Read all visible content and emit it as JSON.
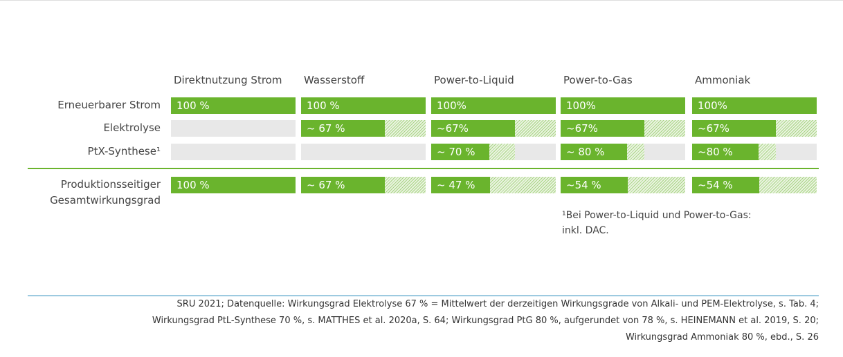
{
  "chart_data": {
    "type": "bar",
    "categories": [
      "Direktnutzung Strom",
      "Wasserstoff",
      "Power-to-Liquid",
      "Power-to-Gas",
      "Ammoniak"
    ],
    "series": [
      {
        "name": "Erneuerbarer Strom",
        "values": [
          100,
          100,
          100,
          100,
          100
        ],
        "value_labels": [
          "100 %",
          "100 %",
          "100%",
          "100%",
          "100%"
        ]
      },
      {
        "name": "Elektrolyse",
        "values": [
          null,
          67,
          67,
          67,
          67
        ],
        "value_labels": [
          null,
          "~ 67 %",
          "~67%",
          "~67%",
          "~67%"
        ]
      },
      {
        "name": "PtX-Synthese¹",
        "values": [
          null,
          null,
          70,
          80,
          80
        ],
        "value_labels": [
          null,
          null,
          "~ 70 %",
          "~ 80 %",
          "~80 %"
        ]
      },
      {
        "name": "Produktionsseitiger Gesamtwirkungsgrad",
        "values": [
          100,
          67,
          47,
          54,
          54
        ],
        "value_labels": [
          "100 %",
          "~ 67 %",
          "~ 47 %",
          "~54 %",
          "~54 %"
        ],
        "total": true
      }
    ],
    "xlim": [
      0,
      100
    ],
    "color": "#6ab42d",
    "footnote": [
      "¹Bei Power-to-Liquid und Power-to-Gas:",
      "inkl. DAC."
    ],
    "source": [
      "SRU 2021; Datenquelle: Wirkungsgrad Elektrolyse 67 % = Mittelwert der derzeitigen Wirkungsgrade von Alkali- und PEM-Elektrolyse, s. Tab. 4;",
      "Wirkungsgrad PtL-Synthese 70 %, s. MATTHES et al. 2020a, S. 64; Wirkungsgrad PtG 80 %, aufgerundet von 78 %, s. HEINEMANN et al. 2019, S. 20;",
      "Wirkungsgrad Ammoniak 80 %, ebd., S. 26"
    ]
  }
}
